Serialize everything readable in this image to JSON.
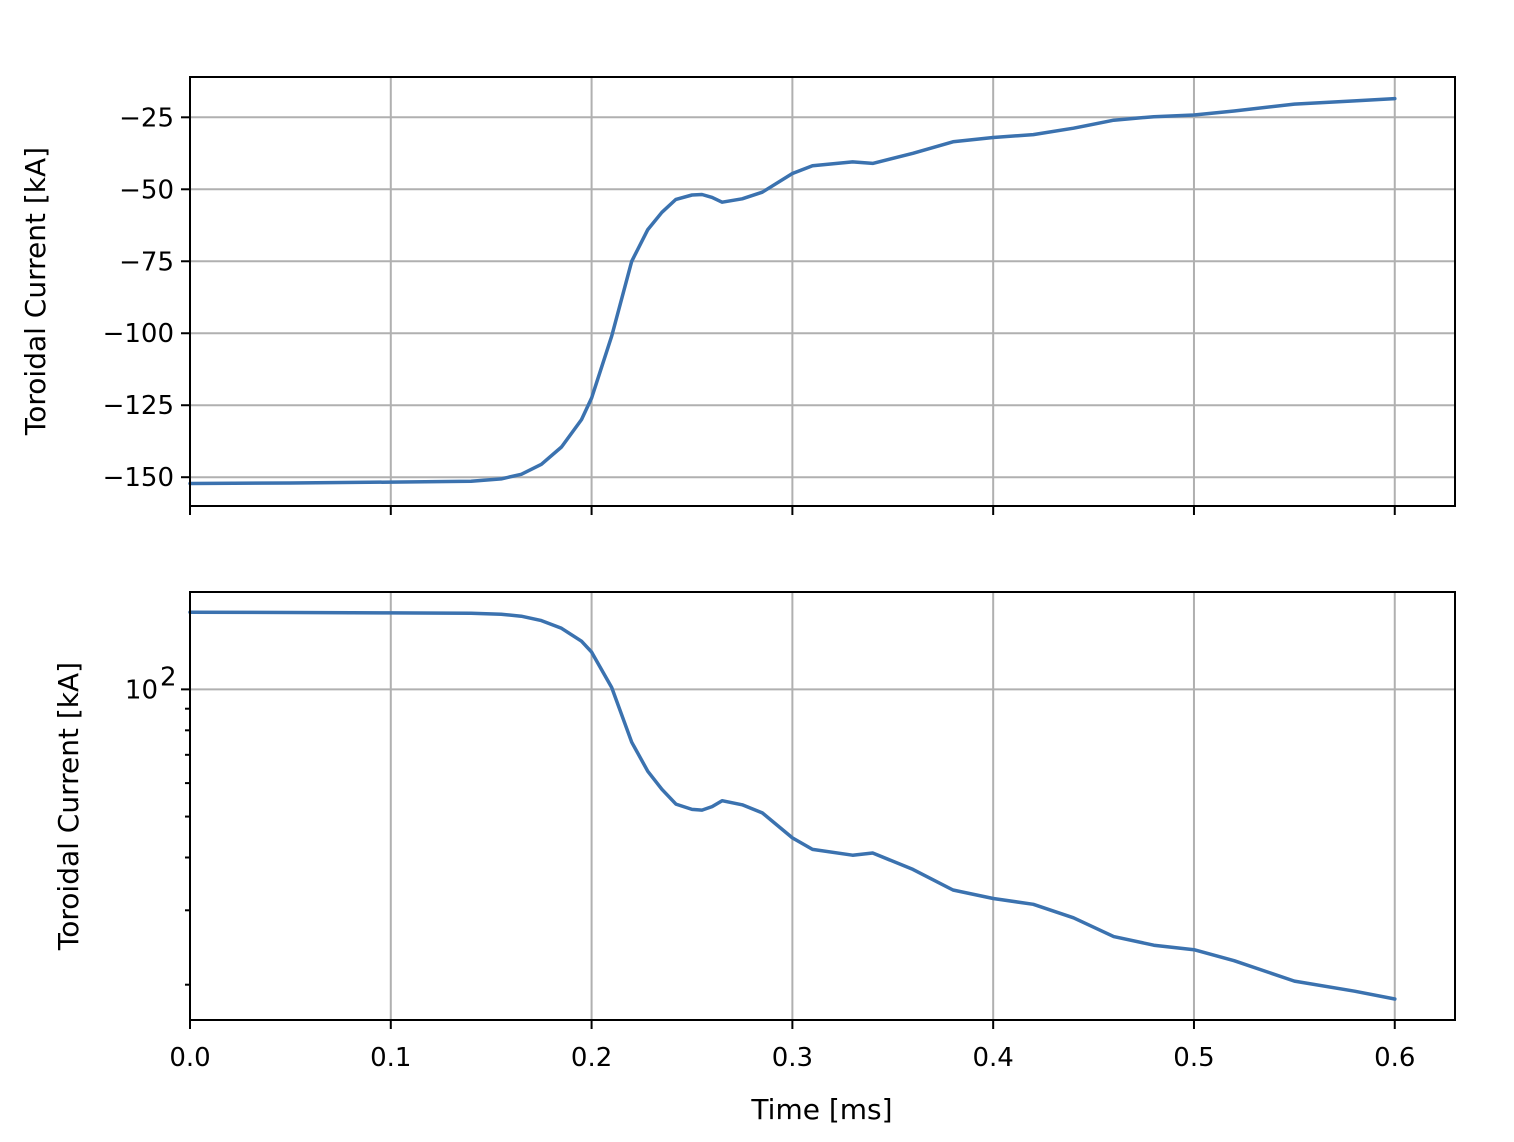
{
  "chart_data": [
    {
      "type": "line",
      "xlabel": "Time [ms]",
      "ylabel": "Toroidal Current [kA]",
      "xlim": [
        0,
        0.63
      ],
      "ylim": [
        -160,
        -11
      ],
      "yscale": "linear",
      "grid": true,
      "xticks": [
        0.0,
        0.1,
        0.2,
        0.3,
        0.4,
        0.5,
        0.6
      ],
      "xtick_labels_shown": false,
      "yticks": [
        -25,
        -50,
        -75,
        -100,
        -125,
        -150
      ],
      "ytick_labels": [
        "−25",
        "−50",
        "−75",
        "−100",
        "−125",
        "−150"
      ],
      "color": "#3b72af",
      "series": [
        {
          "x": [
            0.0,
            0.05,
            0.1,
            0.14,
            0.155,
            0.165,
            0.175,
            0.185,
            0.195,
            0.2,
            0.21,
            0.22,
            0.228,
            0.235,
            0.242,
            0.25,
            0.255,
            0.26,
            0.265,
            0.275,
            0.285,
            0.3,
            0.31,
            0.33,
            0.34,
            0.36,
            0.38,
            0.4,
            0.42,
            0.44,
            0.46,
            0.48,
            0.5,
            0.52,
            0.55,
            0.58,
            0.6
          ],
          "y": [
            -152.2,
            -152.0,
            -151.7,
            -151.4,
            -150.6,
            -149.0,
            -145.5,
            -139.5,
            -130.0,
            -122.5,
            -101.0,
            -75.0,
            -64.0,
            -58.0,
            -53.5,
            -52.0,
            -51.8,
            -52.8,
            -54.5,
            -53.3,
            -51.0,
            -44.5,
            -41.8,
            -40.5,
            -41.0,
            -37.5,
            -33.5,
            -32.0,
            -31.0,
            -28.8,
            -26.0,
            -24.8,
            -24.2,
            -22.8,
            -20.4,
            -19.3,
            -18.5
          ]
        }
      ]
    },
    {
      "type": "line",
      "xlabel": "Time [ms]",
      "ylabel": "Toroidal Current [kA]",
      "xlim": [
        0,
        0.63
      ],
      "ylim": [
        16.5,
        170
      ],
      "yscale": "log",
      "grid": true,
      "xticks": [
        0.0,
        0.1,
        0.2,
        0.3,
        0.4,
        0.5,
        0.6
      ],
      "xtick_labels": [
        "0.0",
        "0.1",
        "0.2",
        "0.3",
        "0.4",
        "0.5",
        "0.6"
      ],
      "yticks_major": [
        100
      ],
      "ytick_major_base": "10",
      "ytick_major_exp": "2",
      "yticks_minor": [
        20,
        30,
        40,
        50,
        60,
        70,
        80,
        90
      ],
      "color": "#3b72af",
      "series": [
        {
          "x": [
            0.0,
            0.05,
            0.1,
            0.14,
            0.155,
            0.165,
            0.175,
            0.185,
            0.195,
            0.2,
            0.21,
            0.22,
            0.228,
            0.235,
            0.242,
            0.25,
            0.255,
            0.26,
            0.265,
            0.275,
            0.285,
            0.3,
            0.31,
            0.33,
            0.34,
            0.36,
            0.38,
            0.4,
            0.42,
            0.44,
            0.46,
            0.48,
            0.5,
            0.52,
            0.55,
            0.58,
            0.6
          ],
          "y": [
            152.2,
            152.0,
            151.7,
            151.4,
            150.6,
            149.0,
            145.5,
            139.5,
            130.0,
            122.5,
            101.0,
            75.0,
            64.0,
            58.0,
            53.5,
            52.0,
            51.8,
            52.8,
            54.5,
            53.3,
            51.0,
            44.5,
            41.8,
            40.5,
            41.0,
            37.5,
            33.5,
            32.0,
            31.0,
            28.8,
            26.0,
            24.8,
            24.2,
            22.8,
            20.4,
            19.3,
            18.5
          ]
        }
      ]
    }
  ]
}
